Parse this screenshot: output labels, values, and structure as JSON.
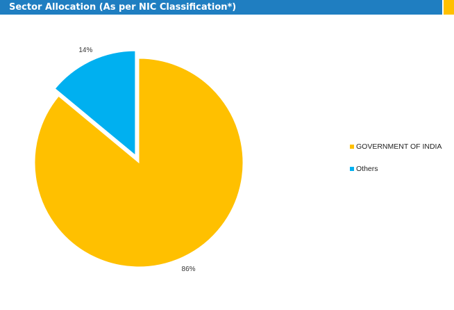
{
  "header": {
    "title": "Sector Allocation (As per NIC Classification*)",
    "bar_color": "#1F7EC1",
    "accent_color": "#FFC000"
  },
  "chart_data": {
    "type": "pie",
    "title": "Sector Allocation (As per NIC Classification*)",
    "slices": [
      {
        "label": "GOVERNMENT OF INDIA",
        "value": 86,
        "display": "86%",
        "color": "#FFC000",
        "exploded": false
      },
      {
        "label": "Others",
        "value": 14,
        "display": "14%",
        "color": "#00B0F0",
        "exploded": true
      }
    ],
    "legend_position": "right"
  }
}
